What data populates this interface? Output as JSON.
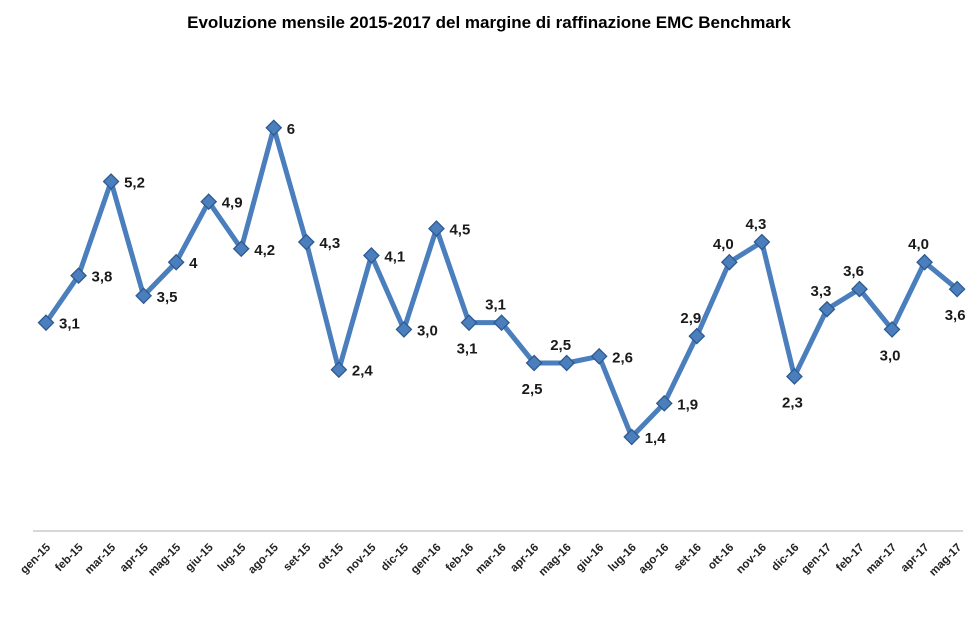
{
  "chart_data": {
    "type": "line",
    "title": "Evoluzione mensile 2015-2017 del margine di raffinazione EMC Benchmark",
    "categories": [
      "gen-15",
      "feb-15",
      "mar-15",
      "apr-15",
      "mag-15",
      "giu-15",
      "lug-15",
      "ago-15",
      "set-15",
      "ott-15",
      "nov-15",
      "dic-15",
      "gen-16",
      "feb-16",
      "mar-16",
      "apr-16",
      "mag-16",
      "giu-16",
      "lug-16",
      "ago-16",
      "set-16",
      "ott-16",
      "nov-16",
      "dic-16",
      "gen-17",
      "feb-17",
      "mar-17",
      "apr-17",
      "mag-17"
    ],
    "values": [
      3.1,
      3.8,
      5.2,
      3.5,
      4,
      4.9,
      4.2,
      6,
      4.3,
      2.4,
      4.1,
      3.0,
      4.5,
      3.1,
      3.1,
      2.5,
      2.5,
      2.6,
      1.4,
      1.9,
      2.9,
      4.0,
      4.3,
      2.3,
      3.3,
      3.6,
      3.0,
      4.0,
      3.6
    ],
    "value_labels": [
      "3,1",
      "3,8",
      "5,2",
      "3,5",
      "4",
      "4,9",
      "4,2",
      "6",
      "4,3",
      "2,4",
      "4,1",
      "3,0",
      "4,5",
      "3,1",
      "3,1",
      "2,5",
      "2,5",
      "2,6",
      "1,4",
      "1,9",
      "2,9",
      "4,0",
      "4,3",
      "2,3",
      "3,3",
      "3,6",
      "3,0",
      "4,0",
      "3,6"
    ],
    "label_placement": [
      "r",
      "r",
      "r",
      "r",
      "r",
      "r",
      "r",
      "r",
      "r",
      "r",
      "r",
      "r",
      "r",
      "b",
      "a",
      "b",
      "a",
      "r",
      "r",
      "r",
      "a",
      "a",
      "a",
      "b",
      "a",
      "a",
      "b",
      "a",
      "b"
    ],
    "xlabel": "",
    "ylabel": "",
    "ylim": [
      0,
      7
    ],
    "grid": false,
    "legend": "none",
    "line_color": "#4a7ebc",
    "marker": "diamond",
    "marker_border_color": "#2e5a8f",
    "label_color": "#1a1a1a",
    "axis_line_color": "#bfbfbf",
    "tick_label_color": "#222222"
  }
}
